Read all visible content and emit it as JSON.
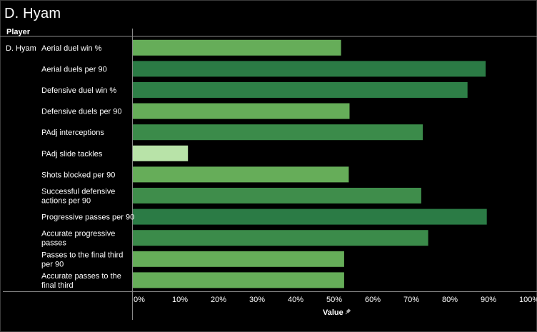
{
  "title": "D. Hyam",
  "column_header": "Player",
  "player": "D. Hyam",
  "pin_icon": "pin-icon",
  "chart_data": {
    "type": "bar",
    "orientation": "horizontal",
    "xlabel": "Value",
    "xlim": [
      0,
      100
    ],
    "x_ticks": [
      "0%",
      "10%",
      "20%",
      "30%",
      "40%",
      "50%",
      "60%",
      "70%",
      "80%",
      "90%",
      "100%"
    ],
    "grid": false,
    "categories": [
      [
        "Aerial duel win %"
      ],
      [
        "Aerial duels per 90"
      ],
      [
        "Defensive duel win %"
      ],
      [
        "Defensive duels per 90"
      ],
      [
        "PAdj interceptions"
      ],
      [
        "PAdj slide tackles"
      ],
      [
        "Shots blocked per 90"
      ],
      [
        "Successful defensive",
        "actions per 90"
      ],
      [
        "Progressive passes per 90"
      ],
      [
        "Accurate progressive",
        "passes"
      ],
      [
        "Passes to the final third",
        "per 90"
      ],
      [
        "Accurate passes to the",
        "final third"
      ]
    ],
    "values": [
      54,
      91.5,
      86.8,
      56.2,
      75.2,
      14.3,
      56,
      74.8,
      91.8,
      76.6,
      54.8,
      54.8
    ],
    "colors": [
      "#66ad59",
      "#2b7b45",
      "#2e7f47",
      "#66ad59",
      "#3b8b4a",
      "#b8e3a8",
      "#66ad59",
      "#3f8d4b",
      "#2b7b45",
      "#3b8b4a",
      "#66ad59",
      "#66ad59"
    ]
  }
}
